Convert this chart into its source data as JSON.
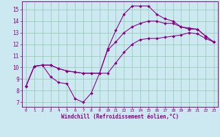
{
  "xlabel": "Windchill (Refroidissement éolien,°C)",
  "bg_color": "#cce8f0",
  "line_color": "#880088",
  "grid_color": "#99ccbb",
  "xlim": [
    -0.5,
    23.5
  ],
  "ylim": [
    6.6,
    15.7
  ],
  "xticks": [
    0,
    1,
    2,
    3,
    4,
    5,
    6,
    7,
    8,
    9,
    10,
    11,
    12,
    13,
    14,
    15,
    16,
    17,
    18,
    19,
    20,
    21,
    22,
    23
  ],
  "yticks": [
    7,
    8,
    9,
    10,
    11,
    12,
    13,
    14,
    15
  ],
  "series": [
    [
      8.4,
      10.1,
      10.2,
      9.2,
      8.7,
      8.6,
      7.3,
      7.0,
      7.8,
      9.5,
      11.6,
      13.2,
      14.6,
      15.3,
      15.3,
      15.3,
      14.6,
      14.2,
      14.0,
      13.5,
      13.3,
      13.3,
      12.7,
      12.2
    ],
    [
      8.4,
      10.1,
      10.2,
      10.2,
      9.9,
      9.7,
      9.6,
      9.5,
      9.5,
      9.5,
      9.5,
      10.4,
      11.3,
      12.0,
      12.4,
      12.5,
      12.5,
      12.6,
      12.7,
      12.8,
      13.0,
      12.9,
      12.5,
      12.2
    ],
    [
      8.4,
      10.1,
      10.2,
      10.2,
      9.9,
      9.7,
      9.6,
      9.5,
      9.5,
      9.5,
      11.5,
      12.2,
      13.0,
      13.5,
      13.8,
      14.0,
      14.0,
      13.8,
      13.8,
      13.5,
      13.4,
      13.3,
      12.7,
      12.2
    ]
  ]
}
